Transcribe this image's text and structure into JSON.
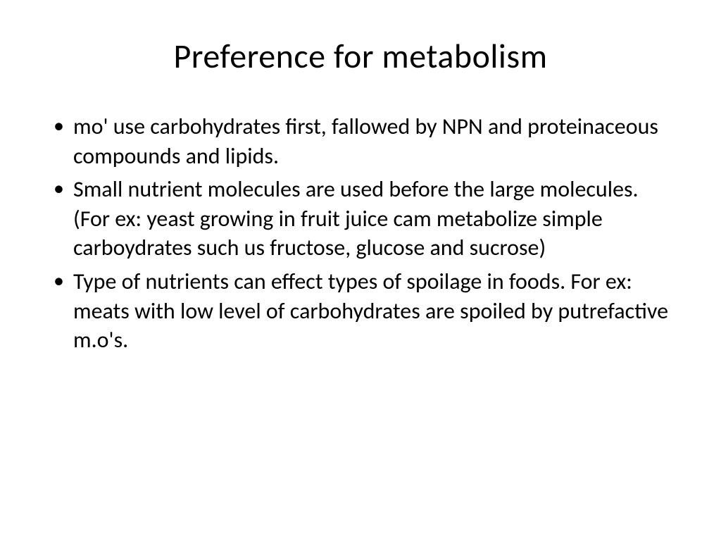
{
  "slide": {
    "title": "Preference for metabolism",
    "bullets": [
      "mo' use carbohydrates first, fallowed by NPN and proteinaceous compounds and lipids.",
      "Small nutrient molecules are used before the large molecules. (For ex: yeast growing in fruit juice cam metabolize simple carboydrates  such us fructose, glucose and sucrose)",
      "Type  of nutrients can effect types of spoilage  in foods. For ex: meats with low level of carbohydrates are spoiled by putrefactive m.o's."
    ],
    "style": {
      "background_color": "#ffffff",
      "text_color": "#000000",
      "title_fontsize": 48,
      "body_fontsize": 32,
      "font_family": "Calibri"
    }
  }
}
